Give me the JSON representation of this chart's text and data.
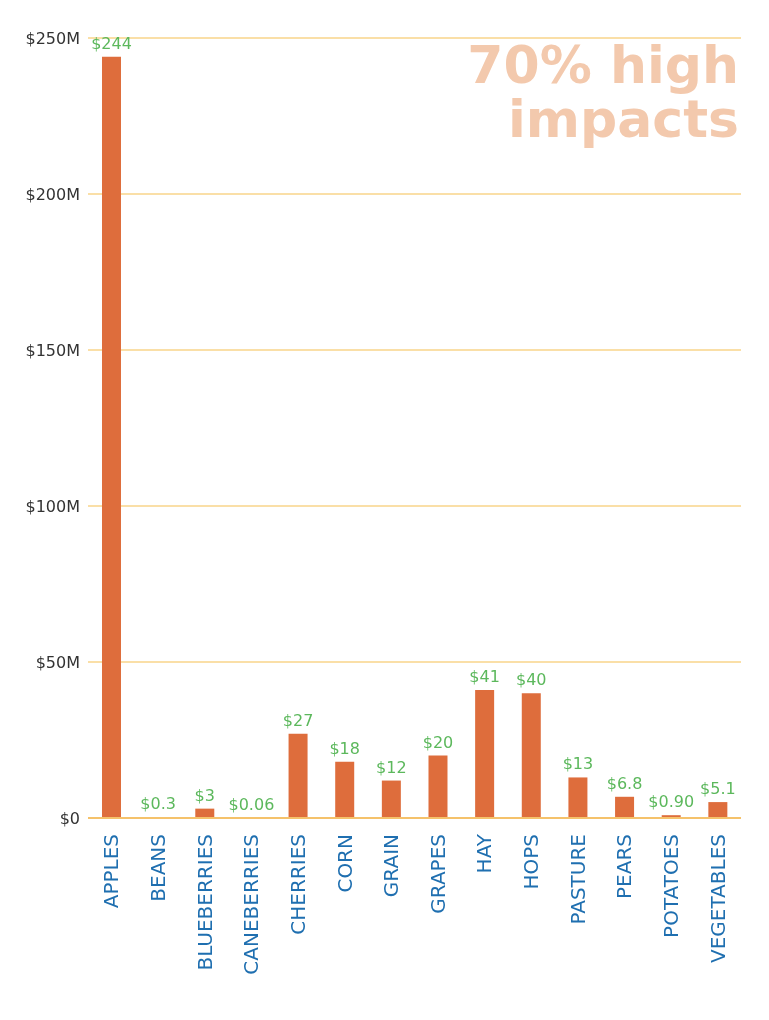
{
  "chart_data": {
    "type": "bar",
    "categories": [
      "APPLES",
      "BEANS",
      "BLUEBERRIES",
      "CANEBERRIES",
      "CHERRIES",
      "CORN",
      "GRAIN",
      "GRAPES",
      "HAY",
      "HOPS",
      "PASTURE",
      "PEARS",
      "POTATOES",
      "VEGETABLES"
    ],
    "values": [
      244,
      0.3,
      3,
      0.06,
      27,
      18,
      12,
      20,
      41,
      40,
      13,
      6.8,
      0.9,
      5.1
    ],
    "value_labels": [
      "$244",
      "$0.3",
      "$3",
      "$0.06",
      "$27",
      "$18",
      "$12",
      "$20",
      "$41",
      "$40",
      "$13",
      "$6.8",
      "$0.90",
      "$5.1"
    ],
    "color": "#de6d3c",
    "ylim": [
      0,
      250
    ],
    "yticks": [
      {
        "value": 0,
        "label": "$0"
      },
      {
        "value": 50,
        "label": "$50M"
      },
      {
        "value": 100,
        "label": "$100M"
      },
      {
        "value": 150,
        "label": "$150M"
      },
      {
        "value": 200,
        "label": "$200M"
      },
      {
        "value": 250,
        "label": "$250M"
      }
    ],
    "grid": "y",
    "annotations": [
      "70% high impacts"
    ]
  }
}
